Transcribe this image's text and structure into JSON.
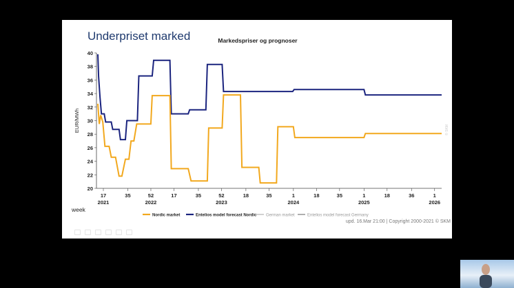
{
  "slide": {
    "title": "Underpriset marked",
    "footer": "upd. 16.Mar 21:00 | Copyright 2000-2021 © SKM",
    "watermark": "© SKM"
  },
  "colors": {
    "nordic": "#f2a81d",
    "entelios": "#1a237e",
    "german": "#cccccc",
    "entelios_germany": "#a6a6a6",
    "axis_text": "#222222",
    "grid": "#d9d9d9"
  },
  "chart_data": {
    "type": "line",
    "title": "Markedspriser og prognoser",
    "ylabel": "EUR/MWh",
    "xlabel": "week",
    "ylim": [
      20,
      40
    ],
    "yticks": [
      20,
      22,
      24,
      26,
      28,
      30,
      32,
      34,
      36,
      38,
      40
    ],
    "x_tick_labels": [
      {
        "week": 17,
        "year": 2021,
        "label": "17",
        "sublabel": "2021"
      },
      {
        "week": 35,
        "year": 2021,
        "label": "35",
        "sublabel": ""
      },
      {
        "week": 52,
        "year": 2021,
        "label": "52",
        "sublabel": "2022"
      },
      {
        "week": 17,
        "year": 2022,
        "label": "17",
        "sublabel": ""
      },
      {
        "week": 35,
        "year": 2022,
        "label": "35",
        "sublabel": ""
      },
      {
        "week": 52,
        "year": 2022,
        "label": "52",
        "sublabel": "2023"
      },
      {
        "week": 18,
        "year": 2023,
        "label": "18",
        "sublabel": ""
      },
      {
        "week": 35,
        "year": 2023,
        "label": "35",
        "sublabel": ""
      },
      {
        "week": 1,
        "year": 2024,
        "label": "1",
        "sublabel": "2024"
      },
      {
        "week": 18,
        "year": 2024,
        "label": "18",
        "sublabel": ""
      },
      {
        "week": 35,
        "year": 2024,
        "label": "35",
        "sublabel": ""
      },
      {
        "week": 1,
        "year": 2025,
        "label": "1",
        "sublabel": "2025"
      },
      {
        "week": 18,
        "year": 2025,
        "label": "18",
        "sublabel": ""
      },
      {
        "week": 36,
        "year": 2025,
        "label": "36",
        "sublabel": ""
      },
      {
        "week": 1,
        "year": 2026,
        "label": "1",
        "sublabel": "2026"
      }
    ],
    "legend": [
      "Nordic market",
      "Entelios model forecast Nordic",
      "German market",
      "Entelios model forecast Germany"
    ],
    "legend_position": "bottom",
    "grid": false,
    "series": [
      {
        "name": "Entelios model forecast Nordic",
        "color": "#1a237e",
        "points": [
          [
            2021.23,
            39.8
          ],
          [
            2021.24,
            36.5
          ],
          [
            2021.26,
            33.5
          ],
          [
            2021.28,
            31.0
          ],
          [
            2021.32,
            31.0
          ],
          [
            2021.34,
            29.8
          ],
          [
            2021.42,
            29.8
          ],
          [
            2021.44,
            28.7
          ],
          [
            2021.53,
            28.7
          ],
          [
            2021.55,
            27.2
          ],
          [
            2021.62,
            27.2
          ],
          [
            2021.64,
            30.0
          ],
          [
            2021.79,
            30.0
          ],
          [
            2021.81,
            36.6
          ],
          [
            2022.0,
            36.6
          ],
          [
            2022.02,
            38.9
          ],
          [
            2022.25,
            38.9
          ],
          [
            2022.27,
            31.0
          ],
          [
            2022.51,
            31.0
          ],
          [
            2022.53,
            31.6
          ],
          [
            2022.76,
            31.6
          ],
          [
            2022.78,
            38.3
          ],
          [
            2022.99,
            38.3
          ],
          [
            2023.01,
            34.3
          ],
          [
            2023.99,
            34.3
          ],
          [
            2024.01,
            34.6
          ],
          [
            2025.0,
            34.6
          ],
          [
            2025.02,
            33.8
          ],
          [
            2026.1,
            33.8
          ]
        ]
      },
      {
        "name": "Nordic market",
        "color": "#f2a81d",
        "points": [
          [
            2021.23,
            32.5
          ],
          [
            2021.25,
            29.5
          ],
          [
            2021.27,
            30.8
          ],
          [
            2021.3,
            29.8
          ],
          [
            2021.33,
            26.2
          ],
          [
            2021.39,
            26.2
          ],
          [
            2021.42,
            24.6
          ],
          [
            2021.48,
            24.6
          ],
          [
            2021.53,
            21.8
          ],
          [
            2021.57,
            21.8
          ],
          [
            2021.62,
            24.3
          ],
          [
            2021.67,
            24.3
          ],
          [
            2021.7,
            27.0
          ],
          [
            2021.74,
            27.0
          ],
          [
            2021.78,
            29.5
          ],
          [
            2021.98,
            29.5
          ],
          [
            2022.0,
            33.7
          ],
          [
            2022.25,
            33.7
          ],
          [
            2022.27,
            22.9
          ],
          [
            2022.51,
            22.9
          ],
          [
            2022.55,
            21.1
          ],
          [
            2022.78,
            21.1
          ],
          [
            2022.8,
            28.9
          ],
          [
            2022.99,
            28.9
          ],
          [
            2023.01,
            33.8
          ],
          [
            2023.25,
            33.8
          ],
          [
            2023.27,
            23.1
          ],
          [
            2023.51,
            23.1
          ],
          [
            2023.53,
            20.8
          ],
          [
            2023.76,
            20.8
          ],
          [
            2023.78,
            29.1
          ],
          [
            2024.0,
            29.1
          ],
          [
            2024.02,
            27.5
          ],
          [
            2025.0,
            27.5
          ],
          [
            2025.02,
            28.1
          ],
          [
            2026.1,
            28.1
          ]
        ]
      }
    ]
  }
}
